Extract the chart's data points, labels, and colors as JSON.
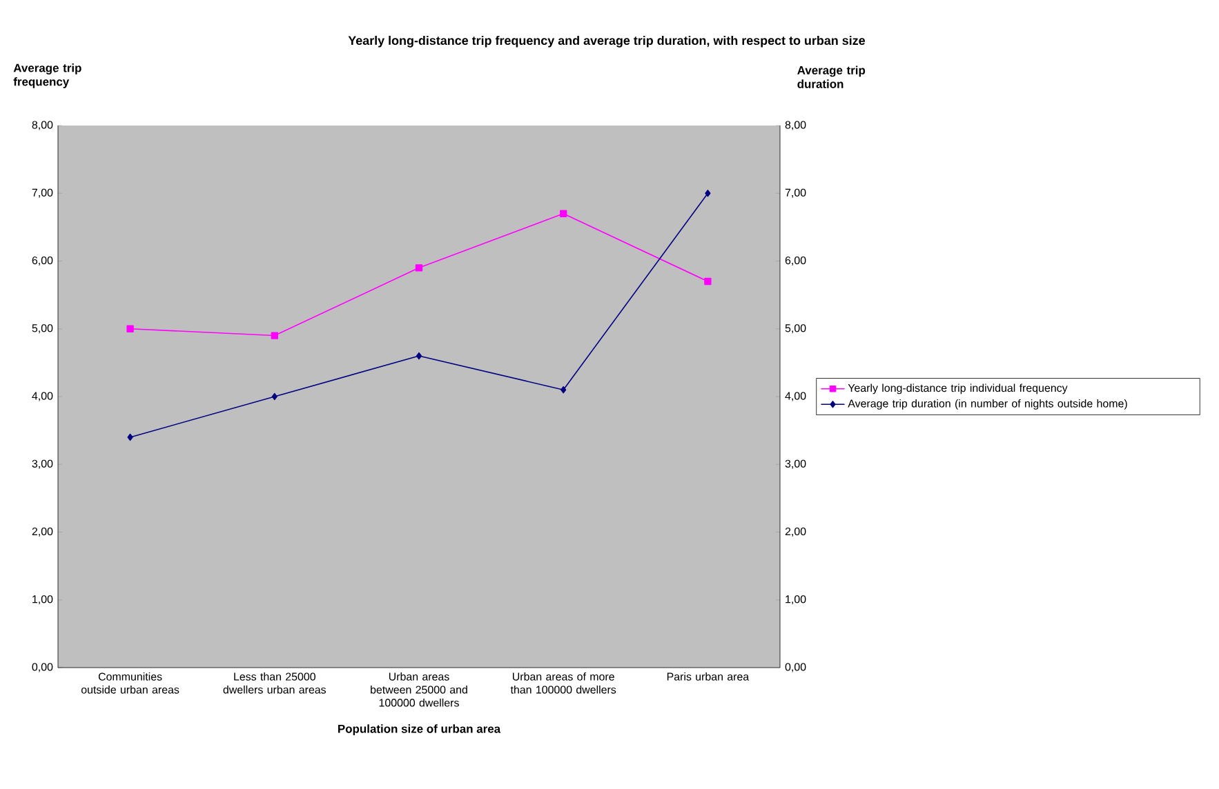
{
  "chart_data": {
    "type": "line",
    "title": "Yearly long-distance trip frequency and average trip duration, with respect to urban size",
    "xlabel": "Population size of urban area",
    "ylabel": "Average trip frequency",
    "y2label": "Average trip duration",
    "categories": [
      "Communities outside urban areas",
      "Less than 25000 dwellers urban areas",
      "Urban areas between 25000 and 100000 dwellers",
      "Urban areas of more than 100000 dwellers",
      "Paris urban area"
    ],
    "series": [
      {
        "name": "Yearly long-distance trip individual frequency",
        "color": "#ff00ff",
        "marker": "square",
        "values": [
          5.0,
          4.9,
          5.9,
          6.7,
          5.7
        ]
      },
      {
        "name": "Average trip duration (in number of nights outside home)",
        "color": "#000080",
        "marker": "diamond",
        "axis": "y2",
        "values": [
          3.4,
          4.0,
          4.6,
          4.1,
          7.0
        ]
      }
    ],
    "ylim": [
      0,
      8
    ],
    "yticks": [
      {
        "value": 0,
        "label": "0,00"
      },
      {
        "value": 1,
        "label": "1,00"
      },
      {
        "value": 2,
        "label": "2,00"
      },
      {
        "value": 3,
        "label": "3,00"
      },
      {
        "value": 4,
        "label": "4,00"
      },
      {
        "value": 5,
        "label": "5,00"
      },
      {
        "value": 6,
        "label": "6,00"
      },
      {
        "value": 7,
        "label": "7,00"
      },
      {
        "value": 8,
        "label": "8,00"
      }
    ],
    "y2lim": [
      0,
      8
    ],
    "y2ticks": [
      {
        "value": 0,
        "label": "0,00"
      },
      {
        "value": 1,
        "label": "1,00"
      },
      {
        "value": 2,
        "label": "2,00"
      },
      {
        "value": 3,
        "label": "3,00"
      },
      {
        "value": 4,
        "label": "4,00"
      },
      {
        "value": 5,
        "label": "5,00"
      },
      {
        "value": 6,
        "label": "6,00"
      },
      {
        "value": 7,
        "label": "7,00"
      },
      {
        "value": 8,
        "label": "8,00"
      }
    ],
    "grid": false,
    "legend": "right"
  }
}
